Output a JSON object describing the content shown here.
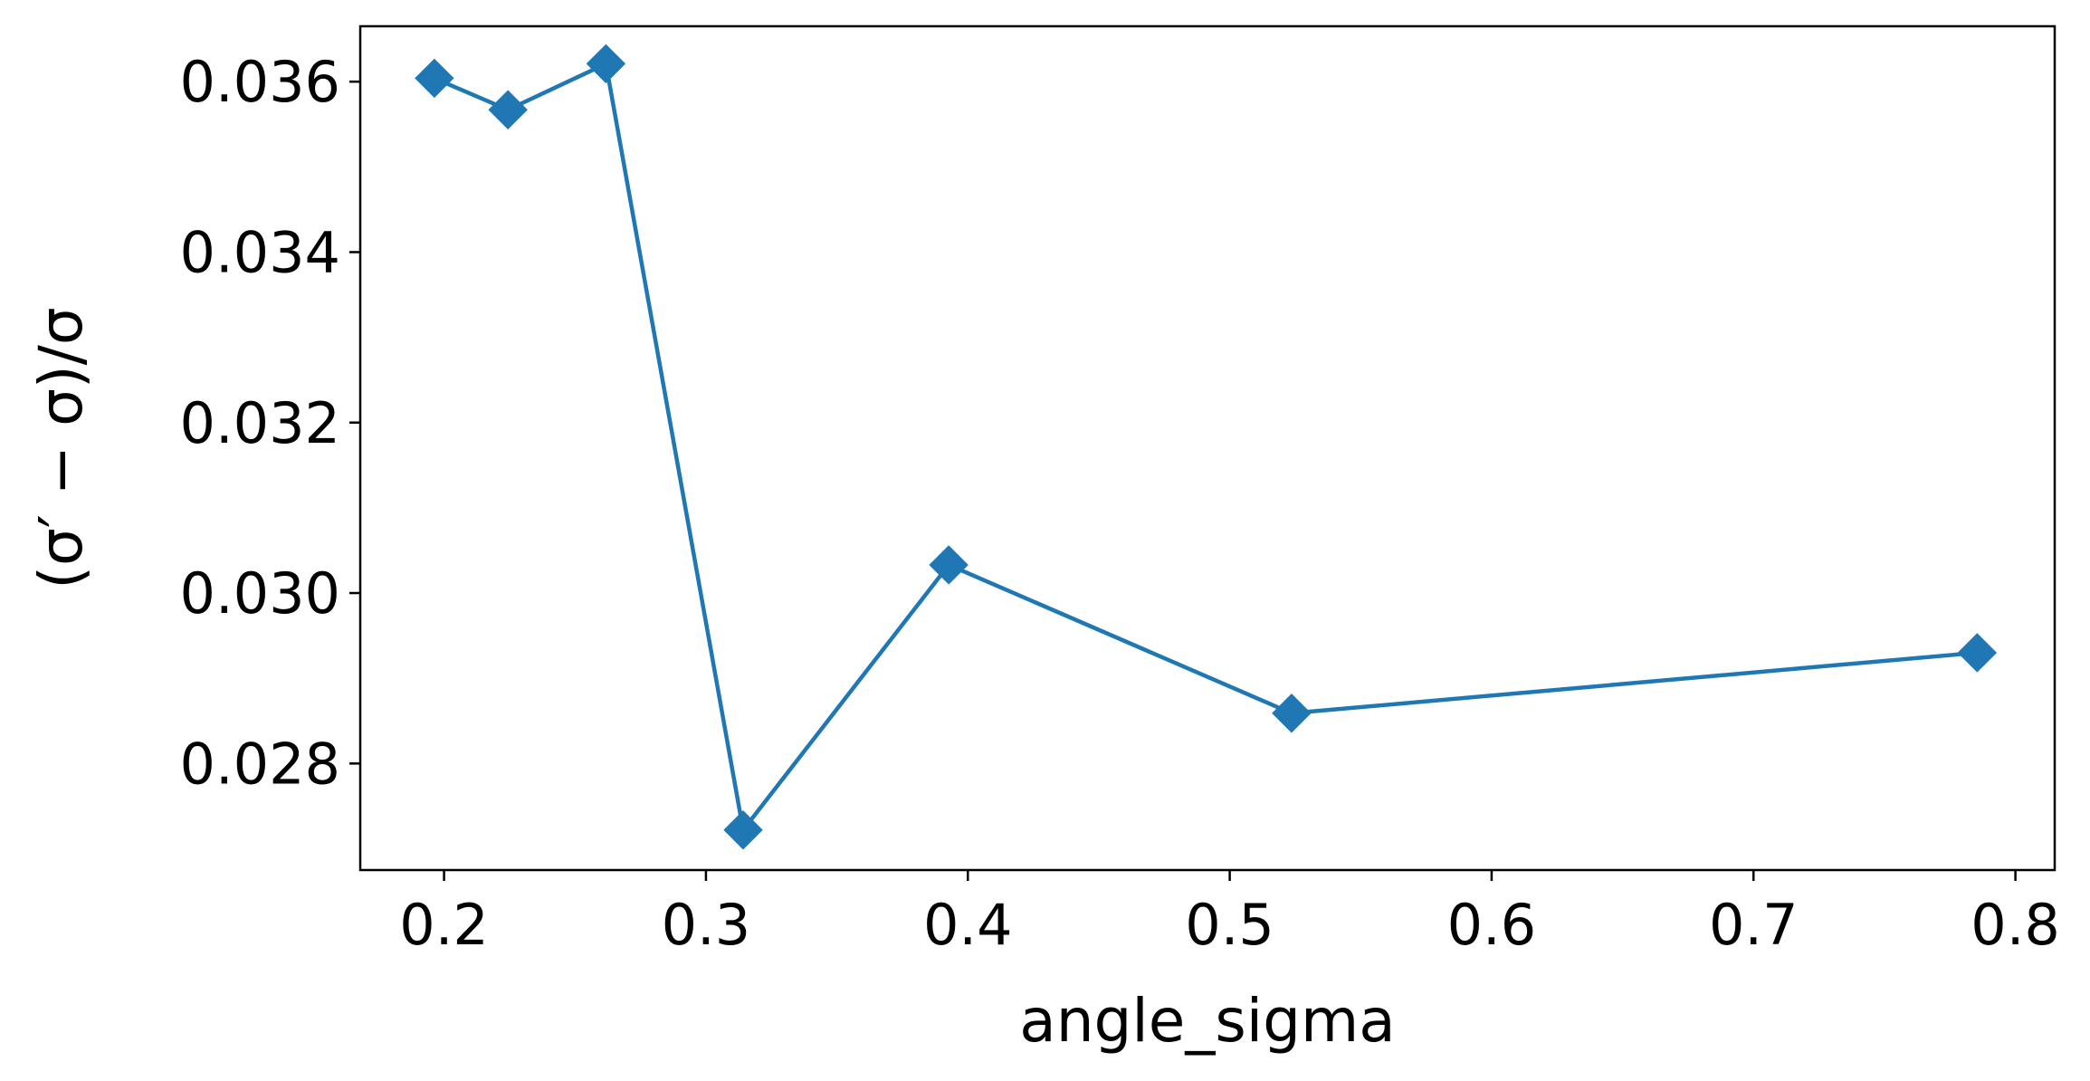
{
  "chart_data": {
    "type": "line",
    "title": "",
    "xlabel": "angle_sigma",
    "ylabel": "(σ′ − σ)/σ",
    "xlim": [
      0.168,
      0.815
    ],
    "ylim": [
      0.02675,
      0.03665
    ],
    "xticks": [
      0.2,
      0.3,
      0.4,
      0.5,
      0.6,
      0.7,
      0.8
    ],
    "xtick_labels": [
      "0.2",
      "0.3",
      "0.4",
      "0.5",
      "0.6",
      "0.7",
      "0.8"
    ],
    "yticks": [
      0.028,
      0.03,
      0.032,
      0.034,
      0.036
    ],
    "ytick_labels": [
      "0.028",
      "0.030",
      "0.032",
      "0.034",
      "0.036"
    ],
    "grid": false,
    "legend": "none",
    "marker": "diamond",
    "color": "#1f77b4",
    "series": [
      {
        "x": [
          0.1963,
          0.2244,
          0.2618,
          0.3142,
          0.3927,
          0.5236,
          0.7854
        ],
        "y": [
          0.03604,
          0.03567,
          0.03621,
          0.02722,
          0.03033,
          0.02859,
          0.0293
        ]
      }
    ]
  }
}
